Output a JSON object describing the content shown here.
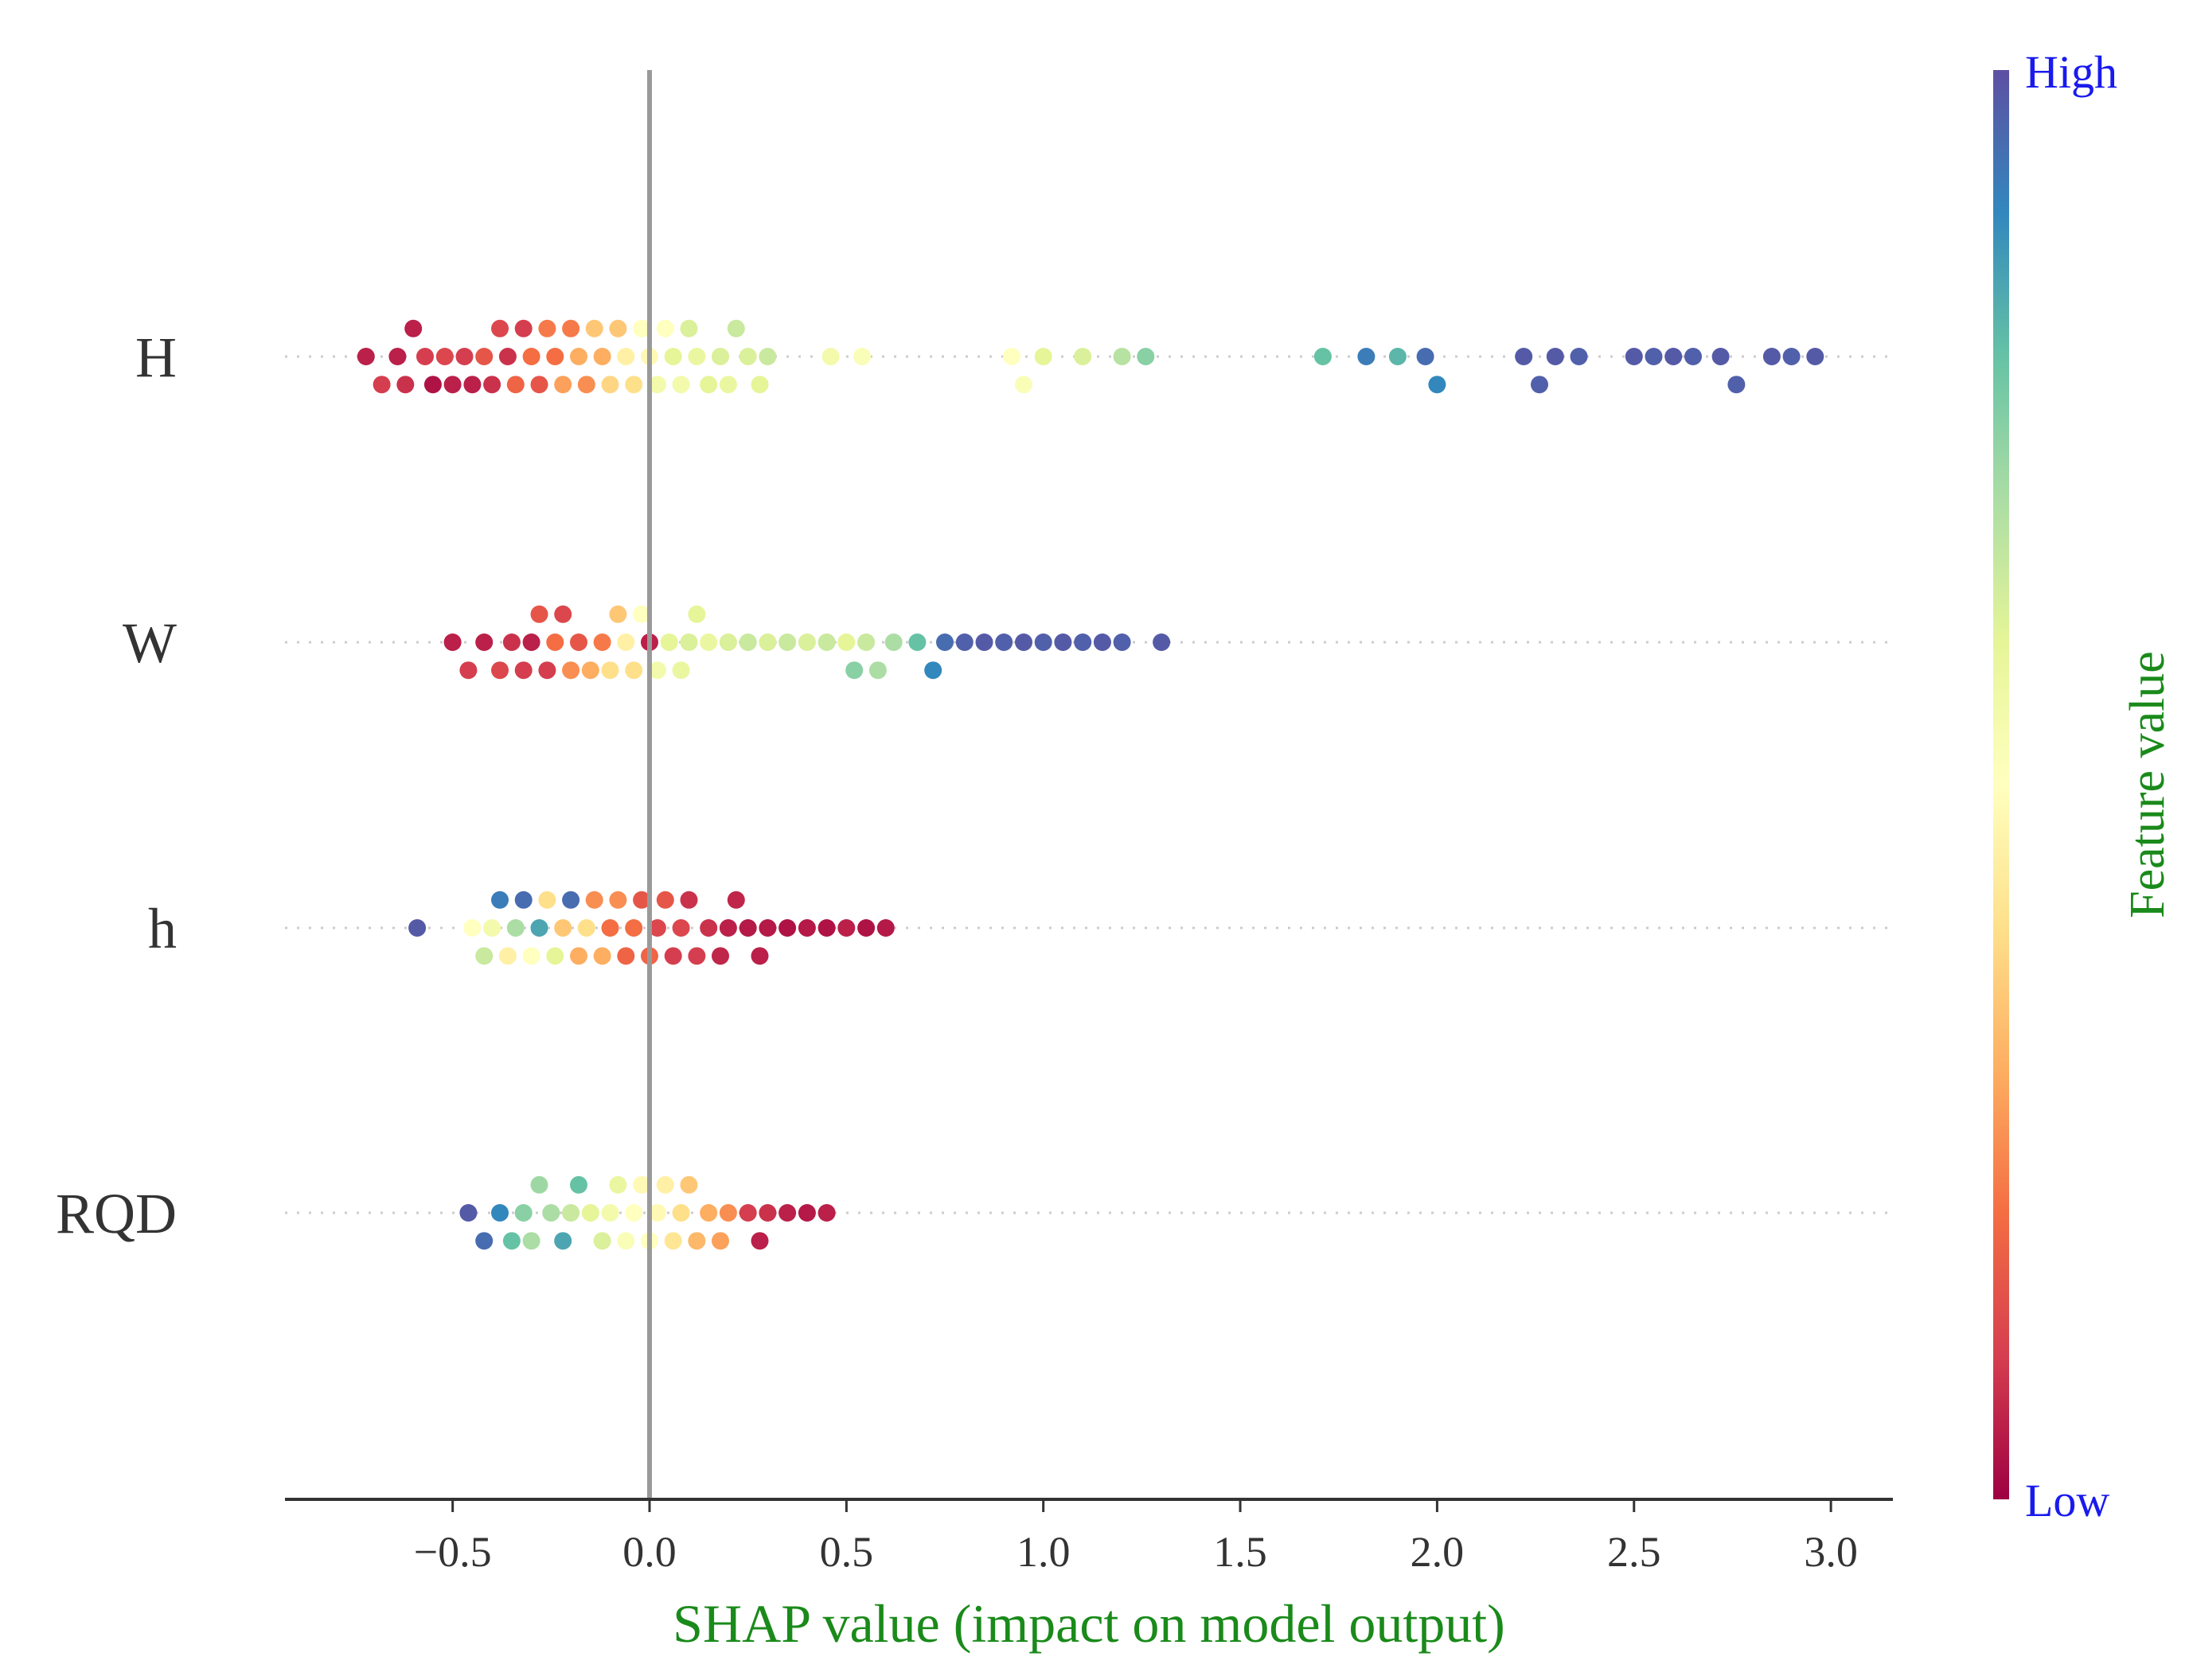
{
  "chart_data": {
    "type": "scatter",
    "subtype": "shap-beeswarm",
    "xlabel": "SHAP value (impact on model output)",
    "xlim": [
      -0.92,
      3.16
    ],
    "xticks": [
      -0.5,
      0.0,
      0.5,
      1.0,
      1.5,
      2.0,
      2.5,
      3.0
    ],
    "xtick_labels": [
      "−0.5",
      "0.0",
      "0.5",
      "1.0",
      "1.5",
      "2.0",
      "2.5",
      "3.0"
    ],
    "zero_line": 0.0,
    "colorbar": {
      "title": "Feature value",
      "high_label": "High",
      "low_label": "Low",
      "colormap": "Spectral",
      "colors_low_to_high": [
        "#9e0142",
        "#d53e4f",
        "#f46d43",
        "#fdae61",
        "#fee08b",
        "#ffffbf",
        "#e6f598",
        "#abdda4",
        "#66c2a5",
        "#3288bd",
        "#5e4fa2"
      ]
    },
    "features": [
      {
        "name": "H",
        "points": [
          [
            -0.72,
            0.05
          ],
          [
            -0.68,
            0.1
          ],
          [
            -0.64,
            0.05
          ],
          [
            -0.62,
            0.08
          ],
          [
            -0.6,
            0.05
          ],
          [
            -0.57,
            0.1
          ],
          [
            -0.55,
            0.03
          ],
          [
            -0.52,
            0.12
          ],
          [
            -0.5,
            0.05
          ],
          [
            -0.47,
            0.1
          ],
          [
            -0.45,
            0.05
          ],
          [
            -0.42,
            0.15
          ],
          [
            -0.4,
            0.08
          ],
          [
            -0.38,
            0.12
          ],
          [
            -0.36,
            0.08
          ],
          [
            -0.34,
            0.18
          ],
          [
            -0.32,
            0.1
          ],
          [
            -0.3,
            0.2
          ],
          [
            -0.28,
            0.15
          ],
          [
            -0.26,
            0.22
          ],
          [
            -0.24,
            0.2
          ],
          [
            -0.22,
            0.28
          ],
          [
            -0.2,
            0.22
          ],
          [
            -0.18,
            0.3
          ],
          [
            -0.16,
            0.25
          ],
          [
            -0.14,
            0.35
          ],
          [
            -0.12,
            0.3
          ],
          [
            -0.1,
            0.38
          ],
          [
            -0.08,
            0.35
          ],
          [
            -0.06,
            0.45
          ],
          [
            -0.04,
            0.4
          ],
          [
            -0.02,
            0.5
          ],
          [
            0.0,
            0.48
          ],
          [
            0.02,
            0.55
          ],
          [
            0.04,
            0.5
          ],
          [
            0.06,
            0.6
          ],
          [
            0.08,
            0.55
          ],
          [
            0.1,
            0.62
          ],
          [
            0.12,
            0.58
          ],
          [
            0.15,
            0.6
          ],
          [
            0.18,
            0.62
          ],
          [
            0.2,
            0.58
          ],
          [
            0.22,
            0.65
          ],
          [
            0.25,
            0.62
          ],
          [
            0.28,
            0.6
          ],
          [
            0.3,
            0.65
          ],
          [
            0.46,
            0.55
          ],
          [
            0.54,
            0.52
          ],
          [
            0.92,
            0.5
          ],
          [
            0.95,
            0.52
          ],
          [
            1.0,
            0.6
          ],
          [
            1.1,
            0.62
          ],
          [
            1.2,
            0.68
          ],
          [
            1.26,
            0.75
          ],
          [
            1.71,
            0.8
          ],
          [
            1.82,
            0.92
          ],
          [
            1.9,
            0.82
          ],
          [
            1.97,
            0.95
          ],
          [
            2.0,
            0.9
          ],
          [
            2.22,
            0.98
          ],
          [
            2.26,
            0.97
          ],
          [
            2.3,
            0.98
          ],
          [
            2.36,
            0.97
          ],
          [
            2.5,
            0.98
          ],
          [
            2.55,
            0.97
          ],
          [
            2.6,
            0.98
          ],
          [
            2.65,
            0.97
          ],
          [
            2.72,
            0.98
          ],
          [
            2.76,
            0.97
          ],
          [
            2.85,
            0.98
          ],
          [
            2.9,
            0.97
          ],
          [
            2.96,
            0.98
          ]
        ]
      },
      {
        "name": "W",
        "points": [
          [
            -0.5,
            0.05
          ],
          [
            -0.46,
            0.1
          ],
          [
            -0.42,
            0.05
          ],
          [
            -0.38,
            0.12
          ],
          [
            -0.35,
            0.08
          ],
          [
            -0.32,
            0.1
          ],
          [
            -0.3,
            0.05
          ],
          [
            -0.28,
            0.15
          ],
          [
            -0.26,
            0.1
          ],
          [
            -0.24,
            0.2
          ],
          [
            -0.22,
            0.12
          ],
          [
            -0.2,
            0.25
          ],
          [
            -0.18,
            0.15
          ],
          [
            -0.15,
            0.3
          ],
          [
            -0.12,
            0.22
          ],
          [
            -0.1,
            0.4
          ],
          [
            -0.08,
            0.35
          ],
          [
            -0.06,
            0.45
          ],
          [
            -0.04,
            0.4
          ],
          [
            -0.02,
            0.5
          ],
          [
            0.0,
            0.05
          ],
          [
            0.02,
            0.55
          ],
          [
            0.05,
            0.6
          ],
          [
            0.08,
            0.58
          ],
          [
            0.1,
            0.62
          ],
          [
            0.12,
            0.6
          ],
          [
            0.15,
            0.58
          ],
          [
            0.2,
            0.62
          ],
          [
            0.25,
            0.65
          ],
          [
            0.3,
            0.62
          ],
          [
            0.35,
            0.65
          ],
          [
            0.4,
            0.62
          ],
          [
            0.45,
            0.65
          ],
          [
            0.5,
            0.6
          ],
          [
            0.52,
            0.75
          ],
          [
            0.55,
            0.65
          ],
          [
            0.58,
            0.7
          ],
          [
            0.62,
            0.7
          ],
          [
            0.68,
            0.8
          ],
          [
            0.72,
            0.9
          ],
          [
            0.75,
            0.95
          ],
          [
            0.8,
            0.97
          ],
          [
            0.85,
            0.98
          ],
          [
            0.9,
            0.97
          ],
          [
            0.95,
            0.98
          ],
          [
            1.0,
            0.97
          ],
          [
            1.05,
            0.98
          ],
          [
            1.1,
            0.97
          ],
          [
            1.15,
            0.98
          ],
          [
            1.2,
            0.97
          ],
          [
            1.3,
            0.98
          ]
        ]
      },
      {
        "name": "h",
        "points": [
          [
            -0.59,
            0.98
          ],
          [
            -0.45,
            0.5
          ],
          [
            -0.42,
            0.65
          ],
          [
            -0.4,
            0.55
          ],
          [
            -0.38,
            0.92
          ],
          [
            -0.36,
            0.45
          ],
          [
            -0.34,
            0.7
          ],
          [
            -0.32,
            0.95
          ],
          [
            -0.3,
            0.5
          ],
          [
            -0.28,
            0.85
          ],
          [
            -0.26,
            0.4
          ],
          [
            -0.24,
            0.6
          ],
          [
            -0.22,
            0.35
          ],
          [
            -0.2,
            0.95
          ],
          [
            -0.18,
            0.3
          ],
          [
            -0.16,
            0.4
          ],
          [
            -0.14,
            0.25
          ],
          [
            -0.12,
            0.3
          ],
          [
            -0.1,
            0.2
          ],
          [
            -0.08,
            0.25
          ],
          [
            -0.06,
            0.18
          ],
          [
            -0.04,
            0.2
          ],
          [
            -0.02,
            0.15
          ],
          [
            0.0,
            0.18
          ],
          [
            0.02,
            0.12
          ],
          [
            0.04,
            0.15
          ],
          [
            0.06,
            0.1
          ],
          [
            0.08,
            0.12
          ],
          [
            0.1,
            0.08
          ],
          [
            0.12,
            0.1
          ],
          [
            0.15,
            0.08
          ],
          [
            0.18,
            0.06
          ],
          [
            0.2,
            0.05
          ],
          [
            0.22,
            0.06
          ],
          [
            0.25,
            0.04
          ],
          [
            0.28,
            0.05
          ],
          [
            0.3,
            0.04
          ],
          [
            0.35,
            0.03
          ],
          [
            0.4,
            0.04
          ],
          [
            0.45,
            0.03
          ],
          [
            0.5,
            0.05
          ],
          [
            0.55,
            0.03
          ],
          [
            0.6,
            0.04
          ]
        ]
      },
      {
        "name": "RQD",
        "points": [
          [
            -0.46,
            0.98
          ],
          [
            -0.42,
            0.95
          ],
          [
            -0.38,
            0.9
          ],
          [
            -0.35,
            0.8
          ],
          [
            -0.32,
            0.75
          ],
          [
            -0.3,
            0.7
          ],
          [
            -0.28,
            0.72
          ],
          [
            -0.25,
            0.7
          ],
          [
            -0.22,
            0.85
          ],
          [
            -0.2,
            0.65
          ],
          [
            -0.18,
            0.8
          ],
          [
            -0.15,
            0.6
          ],
          [
            -0.12,
            0.62
          ],
          [
            -0.1,
            0.55
          ],
          [
            -0.08,
            0.58
          ],
          [
            -0.06,
            0.52
          ],
          [
            -0.04,
            0.5
          ],
          [
            -0.02,
            0.48
          ],
          [
            0.0,
            0.5
          ],
          [
            0.02,
            0.48
          ],
          [
            0.04,
            0.45
          ],
          [
            0.06,
            0.42
          ],
          [
            0.08,
            0.4
          ],
          [
            0.1,
            0.35
          ],
          [
            0.12,
            0.32
          ],
          [
            0.15,
            0.3
          ],
          [
            0.18,
            0.28
          ],
          [
            0.2,
            0.25
          ],
          [
            0.25,
            0.1
          ],
          [
            0.28,
            0.05
          ],
          [
            0.3,
            0.08
          ],
          [
            0.35,
            0.05
          ],
          [
            0.4,
            0.04
          ],
          [
            0.45,
            0.05
          ]
        ]
      }
    ]
  }
}
